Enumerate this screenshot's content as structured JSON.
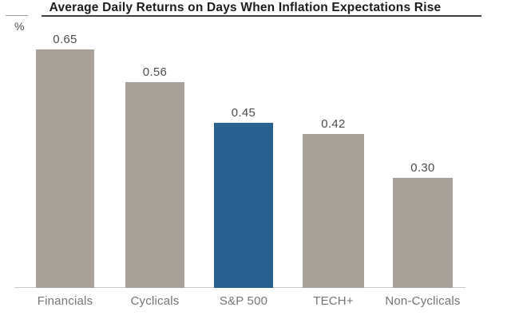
{
  "chart_data": {
    "type": "bar",
    "title": "Average Daily Returns on Days When Inflation Expectations Rise",
    "xlabel": "",
    "ylabel": "%",
    "categories": [
      "Financials",
      "Cyclicals",
      "S&P 500",
      "TECH+",
      "Non-Cyclicals"
    ],
    "values": [
      0.65,
      0.56,
      0.45,
      0.42,
      0.3
    ],
    "value_labels": [
      "0.65",
      "0.56",
      "0.45",
      "0.42",
      "0.30"
    ],
    "ylim": [
      0,
      0.7
    ],
    "grid": false,
    "legend": false,
    "axis_ticks": "none",
    "bar_color": "#a8a19a",
    "highlight_color": "#28608f",
    "highlight_category": "S&P 500",
    "colors": {
      "background": "#ffffff",
      "title_text": "#1c1c1c",
      "title_underline": "#3f3f3f",
      "value_label_text": "#4c4c4c",
      "category_label_text": "#757575",
      "baseline": "#c9c9c9"
    }
  }
}
